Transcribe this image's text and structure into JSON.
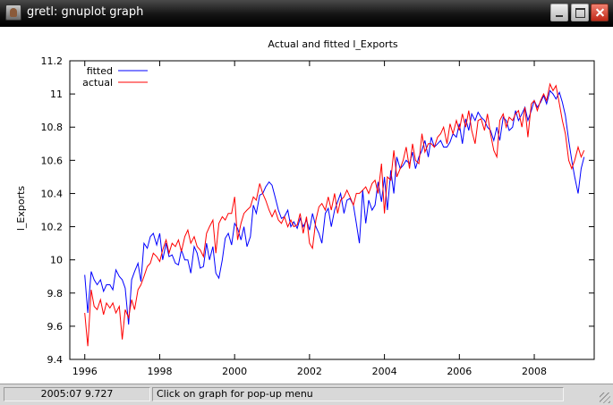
{
  "window": {
    "title": "gretl: gnuplot graph",
    "icon": "gretl-app-icon",
    "controls": [
      "minimize-icon",
      "maximize-icon",
      "close-icon"
    ]
  },
  "statusbar": {
    "coords": "2005:07 9.727",
    "hint": "Click on graph for pop-up menu"
  },
  "chart_data": {
    "type": "line",
    "title": "Actual and fitted l_Exports",
    "xlabel": "",
    "ylabel": "l_Exports",
    "xlim": [
      1995.6,
      2009.6
    ],
    "ylim": [
      9.4,
      11.2
    ],
    "xticks": [
      1996,
      1998,
      2000,
      2002,
      2004,
      2006,
      2008
    ],
    "yticks": [
      9.4,
      9.6,
      9.8,
      10,
      10.2,
      10.4,
      10.6,
      10.8,
      11,
      11.2
    ],
    "xtick_labels": [
      "1996",
      "1998",
      "2000",
      "2002",
      "2004",
      "2006",
      "2008"
    ],
    "ytick_labels": [
      "9.4",
      "9.6",
      "9.8",
      "10",
      "10.2",
      "10.4",
      "10.6",
      "10.8",
      "11",
      "11.2"
    ],
    "grid": false,
    "legend": "top-left",
    "series": [
      {
        "name": "fitted",
        "color": "#0000ff",
        "x": [
          1996.0,
          1996.08,
          1996.17,
          1996.25,
          1996.33,
          1996.42,
          1996.5,
          1996.58,
          1996.67,
          1996.75,
          1996.83,
          1996.92,
          1997.0,
          1997.08,
          1997.17,
          1997.25,
          1997.33,
          1997.42,
          1997.5,
          1997.58,
          1997.67,
          1997.75,
          1997.83,
          1997.92,
          1998.0,
          1998.08,
          1998.17,
          1998.25,
          1998.33,
          1998.42,
          1998.5,
          1998.58,
          1998.67,
          1998.75,
          1998.83,
          1998.92,
          1999.0,
          1999.08,
          1999.17,
          1999.25,
          1999.33,
          1999.42,
          1999.5,
          1999.58,
          1999.67,
          1999.75,
          1999.83,
          1999.92,
          2000.0,
          2000.08,
          2000.17,
          2000.25,
          2000.33,
          2000.42,
          2000.5,
          2000.58,
          2000.67,
          2000.75,
          2000.83,
          2000.92,
          2001.0,
          2001.08,
          2001.17,
          2001.25,
          2001.33,
          2001.42,
          2001.5,
          2001.58,
          2001.67,
          2001.75,
          2001.83,
          2001.92,
          2002.0,
          2002.08,
          2002.17,
          2002.25,
          2002.33,
          2002.42,
          2002.5,
          2002.58,
          2002.67,
          2002.75,
          2002.83,
          2002.92,
          2003.0,
          2003.08,
          2003.17,
          2003.25,
          2003.33,
          2003.42,
          2003.5,
          2003.58,
          2003.67,
          2003.75,
          2003.83,
          2003.92,
          2004.0,
          2004.08,
          2004.17,
          2004.25,
          2004.33,
          2004.42,
          2004.5,
          2004.58,
          2004.67,
          2004.75,
          2004.83,
          2004.92,
          2005.0,
          2005.08,
          2005.17,
          2005.25,
          2005.33,
          2005.42,
          2005.5,
          2005.58,
          2005.67,
          2005.75,
          2005.83,
          2005.92,
          2006.0,
          2006.08,
          2006.17,
          2006.25,
          2006.33,
          2006.42,
          2006.5,
          2006.58,
          2006.67,
          2006.75,
          2006.83,
          2006.92,
          2007.0,
          2007.08,
          2007.17,
          2007.25,
          2007.33,
          2007.42,
          2007.5,
          2007.58,
          2007.67,
          2007.75,
          2007.83,
          2007.92,
          2008.0,
          2008.08,
          2008.17,
          2008.25,
          2008.33,
          2008.42,
          2008.5,
          2008.58,
          2008.67,
          2008.75,
          2008.83,
          2008.92,
          2009.0,
          2009.08,
          2009.17,
          2009.25,
          2009.33
        ],
        "values": [
          9.91,
          9.68,
          9.93,
          9.88,
          9.85,
          9.88,
          9.81,
          9.85,
          9.85,
          9.82,
          9.94,
          9.9,
          9.88,
          9.83,
          9.61,
          9.88,
          9.93,
          9.98,
          9.87,
          10.1,
          10.07,
          10.14,
          10.16,
          10.09,
          10.16,
          10.0,
          10.1,
          10.02,
          10.03,
          9.98,
          9.97,
          10.06,
          10.0,
          10.0,
          9.92,
          10.08,
          10.04,
          9.95,
          9.96,
          10.1,
          10.0,
          10.08,
          9.92,
          9.89,
          10.0,
          10.13,
          10.16,
          10.09,
          10.22,
          10.19,
          10.12,
          10.2,
          10.08,
          10.14,
          10.33,
          10.28,
          10.39,
          10.4,
          10.44,
          10.47,
          10.45,
          10.38,
          10.3,
          10.25,
          10.26,
          10.3,
          10.2,
          10.23,
          10.19,
          10.25,
          10.2,
          10.24,
          10.18,
          10.28,
          10.2,
          10.16,
          10.1,
          10.28,
          10.31,
          10.2,
          10.3,
          10.35,
          10.4,
          10.28,
          10.36,
          10.37,
          10.33,
          10.22,
          10.1,
          10.42,
          10.22,
          10.36,
          10.3,
          10.33,
          10.47,
          10.35,
          10.5,
          10.3,
          10.54,
          10.4,
          10.62,
          10.55,
          10.57,
          10.6,
          10.58,
          10.65,
          10.55,
          10.62,
          10.66,
          10.72,
          10.62,
          10.74,
          10.68,
          10.7,
          10.72,
          10.68,
          10.68,
          10.71,
          10.76,
          10.74,
          10.82,
          10.7,
          10.85,
          10.78,
          10.88,
          10.84,
          10.89,
          10.86,
          10.84,
          10.8,
          10.78,
          10.72,
          10.8,
          10.72,
          10.86,
          10.84,
          10.78,
          10.8,
          10.9,
          10.84,
          10.88,
          10.92,
          10.84,
          10.9,
          10.96,
          10.92,
          10.95,
          10.99,
          10.94,
          11.02,
          11.0,
          10.97,
          11.01,
          10.95,
          10.87,
          10.72,
          10.6,
          10.5,
          10.4,
          10.55,
          10.62
        ]
      },
      {
        "name": "actual",
        "color": "#ff0000",
        "x": [
          1996.0,
          1996.08,
          1996.17,
          1996.25,
          1996.33,
          1996.42,
          1996.5,
          1996.58,
          1996.67,
          1996.75,
          1996.83,
          1996.92,
          1997.0,
          1997.08,
          1997.17,
          1997.25,
          1997.33,
          1997.42,
          1997.5,
          1997.58,
          1997.67,
          1997.75,
          1997.83,
          1997.92,
          1998.0,
          1998.08,
          1998.17,
          1998.25,
          1998.33,
          1998.42,
          1998.5,
          1998.58,
          1998.67,
          1998.75,
          1998.83,
          1998.92,
          1999.0,
          1999.08,
          1999.17,
          1999.25,
          1999.33,
          1999.42,
          1999.5,
          1999.58,
          1999.67,
          1999.75,
          1999.83,
          1999.92,
          2000.0,
          2000.08,
          2000.17,
          2000.25,
          2000.33,
          2000.42,
          2000.5,
          2000.58,
          2000.67,
          2000.75,
          2000.83,
          2000.92,
          2001.0,
          2001.08,
          2001.17,
          2001.25,
          2001.33,
          2001.42,
          2001.5,
          2001.58,
          2001.67,
          2001.75,
          2001.83,
          2001.92,
          2002.0,
          2002.08,
          2002.17,
          2002.25,
          2002.33,
          2002.42,
          2002.5,
          2002.58,
          2002.67,
          2002.75,
          2002.83,
          2002.92,
          2003.0,
          2003.08,
          2003.17,
          2003.25,
          2003.33,
          2003.42,
          2003.5,
          2003.58,
          2003.67,
          2003.75,
          2003.83,
          2003.92,
          2004.0,
          2004.08,
          2004.17,
          2004.25,
          2004.33,
          2004.42,
          2004.5,
          2004.58,
          2004.67,
          2004.75,
          2004.83,
          2004.92,
          2005.0,
          2005.08,
          2005.17,
          2005.25,
          2005.33,
          2005.42,
          2005.5,
          2005.58,
          2005.67,
          2005.75,
          2005.83,
          2005.92,
          2006.0,
          2006.08,
          2006.17,
          2006.25,
          2006.33,
          2006.42,
          2006.5,
          2006.58,
          2006.67,
          2006.75,
          2006.83,
          2006.92,
          2007.0,
          2007.08,
          2007.17,
          2007.25,
          2007.33,
          2007.42,
          2007.5,
          2007.58,
          2007.67,
          2007.75,
          2007.83,
          2007.92,
          2008.0,
          2008.08,
          2008.17,
          2008.25,
          2008.33,
          2008.42,
          2008.5,
          2008.58,
          2008.67,
          2008.75,
          2008.83,
          2008.92,
          2009.0,
          2009.08,
          2009.17,
          2009.25,
          2009.33
        ],
        "values": [
          9.68,
          9.48,
          9.82,
          9.72,
          9.7,
          9.76,
          9.67,
          9.74,
          9.71,
          9.74,
          9.68,
          9.72,
          9.52,
          9.7,
          9.65,
          9.76,
          9.7,
          9.82,
          9.85,
          9.9,
          9.96,
          9.98,
          10.04,
          10.02,
          9.99,
          10.06,
          10.12,
          10.04,
          10.1,
          10.08,
          10.12,
          10.05,
          10.14,
          10.18,
          10.1,
          10.14,
          10.08,
          10.06,
          10.02,
          10.16,
          10.2,
          10.24,
          10.04,
          10.22,
          10.26,
          10.24,
          10.28,
          10.28,
          10.38,
          10.12,
          10.22,
          10.28,
          10.3,
          10.32,
          10.38,
          10.36,
          10.46,
          10.4,
          10.36,
          10.3,
          10.26,
          10.3,
          10.24,
          10.22,
          10.26,
          10.2,
          10.24,
          10.2,
          10.21,
          10.28,
          10.16,
          10.26,
          10.1,
          10.07,
          10.24,
          10.32,
          10.34,
          10.3,
          10.38,
          10.3,
          10.4,
          10.28,
          10.36,
          10.38,
          10.42,
          10.38,
          10.33,
          10.4,
          10.4,
          10.42,
          10.44,
          10.4,
          10.46,
          10.48,
          10.4,
          10.58,
          10.28,
          10.5,
          10.48,
          10.66,
          10.5,
          10.55,
          10.6,
          10.68,
          10.55,
          10.7,
          10.6,
          10.58,
          10.76,
          10.65,
          10.7,
          10.7,
          10.68,
          10.74,
          10.76,
          10.8,
          10.7,
          10.82,
          10.76,
          10.84,
          10.78,
          10.88,
          10.8,
          10.9,
          10.78,
          10.7,
          10.84,
          10.85,
          10.78,
          10.88,
          10.76,
          10.66,
          10.62,
          10.84,
          10.88,
          10.8,
          10.86,
          10.84,
          10.88,
          10.9,
          10.8,
          10.92,
          10.74,
          10.94,
          10.96,
          10.9,
          10.96,
          11.0,
          10.96,
          11.06,
          11.02,
          11.05,
          10.94,
          10.84,
          10.76,
          10.6,
          10.55,
          10.6,
          10.68,
          10.62,
          10.66
        ]
      }
    ]
  }
}
